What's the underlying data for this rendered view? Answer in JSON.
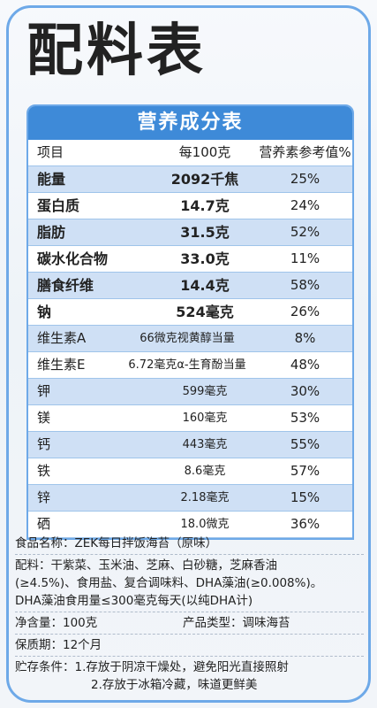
{
  "title": "配料表",
  "table": {
    "heading": "营养成分表",
    "columns": [
      "项目",
      "每100克",
      "营养素参考值%"
    ],
    "rows": [
      {
        "item": "能量",
        "value": "2092千焦",
        "nrv": "25%"
      },
      {
        "item": "蛋白质",
        "value": "14.7克",
        "nrv": "24%"
      },
      {
        "item": "脂肪",
        "value": "31.5克",
        "nrv": "52%"
      },
      {
        "item": "碳水化合物",
        "value": "33.0克",
        "nrv": "11%"
      },
      {
        "item": "膳食纤维",
        "value": "14.4克",
        "nrv": "58%"
      },
      {
        "item": "钠",
        "value": "524毫克",
        "nrv": "26%"
      },
      {
        "item": "维生素A",
        "value": "66微克视黄醇当量",
        "nrv": "8%"
      },
      {
        "item": "维生素E",
        "value": "6.72毫克α-生育酚当量",
        "nrv": "48%"
      },
      {
        "item": "钾",
        "value": "599毫克",
        "nrv": "30%"
      },
      {
        "item": "镁",
        "value": "160毫克",
        "nrv": "53%"
      },
      {
        "item": "钙",
        "value": "443毫克",
        "nrv": "55%"
      },
      {
        "item": "铁",
        "value": "8.6毫克",
        "nrv": "57%"
      },
      {
        "item": "锌",
        "value": "2.18毫克",
        "nrv": "15%"
      },
      {
        "item": "硒",
        "value": "18.0微克",
        "nrv": "36%"
      }
    ]
  },
  "info": {
    "name": "食品名称：ZEK每日拌饭海苔（原味）",
    "ingredients_1": "配料：干紫菜、玉米油、芝麻、白砂糖，芝麻香油",
    "ingredients_2": "(≥4.5%)、食用盐、复合调味料、DHA藻油(≥0.008%)。",
    "ingredients_3": "DHA藻油食用量≤300毫克每天(以纯DHA计)",
    "net": "净含量：100克",
    "type": "产品类型：调味海苔",
    "shelf": "保质期：12个月",
    "storage_1": "贮存条件：1.存放于阴凉干燥处，避免阳光直接照射",
    "storage_2": "2.存放于冰箱冷藏，味道更鲜美"
  }
}
